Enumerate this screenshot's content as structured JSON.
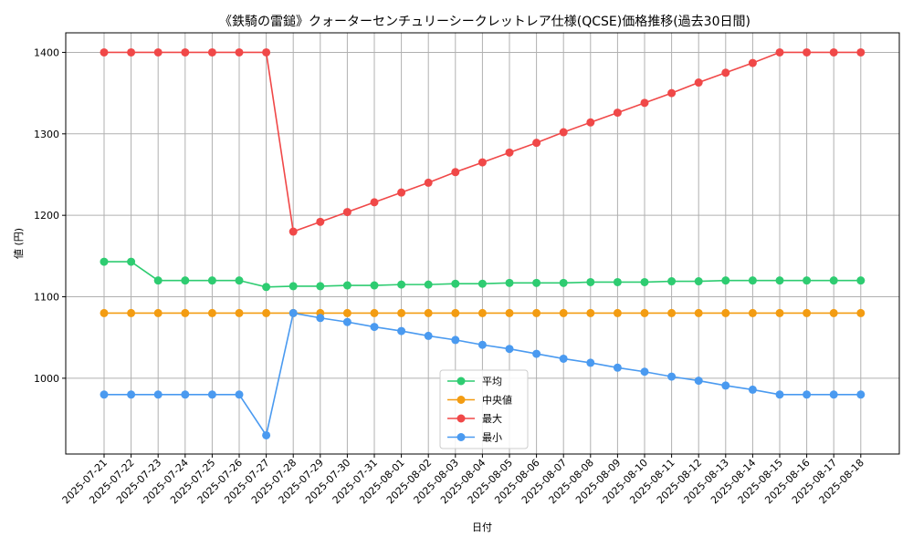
{
  "chart_data": {
    "type": "line",
    "title": "《鉄騎の雷鎚》クォーターセンチュリーシークレットレア仕様(QCSE)価格推移(過去30日間)",
    "xlabel": "日付",
    "ylabel": "値 (円)",
    "ylim": [
      907,
      1424
    ],
    "yticks": [
      1000,
      1100,
      1200,
      1300,
      1400
    ],
    "grid": true,
    "legend_position": "lower-center",
    "categories": [
      "2025-07-21",
      "2025-07-22",
      "2025-07-23",
      "2025-07-24",
      "2025-07-25",
      "2025-07-26",
      "2025-07-27",
      "2025-07-28",
      "2025-07-29",
      "2025-07-30",
      "2025-07-31",
      "2025-08-01",
      "2025-08-02",
      "2025-08-03",
      "2025-08-04",
      "2025-08-05",
      "2025-08-06",
      "2025-08-07",
      "2025-08-08",
      "2025-08-09",
      "2025-08-10",
      "2025-08-11",
      "2025-08-12",
      "2025-08-13",
      "2025-08-14",
      "2025-08-15",
      "2025-08-16",
      "2025-08-17",
      "2025-08-18"
    ],
    "series": [
      {
        "name": "平均",
        "color": "#2ecc71",
        "values": [
          1143,
          1143,
          1120,
          1120,
          1120,
          1120,
          1112,
          1113,
          1113,
          1114,
          1114,
          1115,
          1115,
          1116,
          1116,
          1117,
          1117,
          1117,
          1118,
          1118,
          1118,
          1119,
          1119,
          1120,
          1120,
          1120,
          1120,
          1120,
          1120
        ]
      },
      {
        "name": "中央値",
        "color": "#f39c12",
        "values": [
          1080,
          1080,
          1080,
          1080,
          1080,
          1080,
          1080,
          1080,
          1080,
          1080,
          1080,
          1080,
          1080,
          1080,
          1080,
          1080,
          1080,
          1080,
          1080,
          1080,
          1080,
          1080,
          1080,
          1080,
          1080,
          1080,
          1080,
          1080,
          1080
        ]
      },
      {
        "name": "最大",
        "color": "#f04848",
        "values": [
          1400,
          1400,
          1400,
          1400,
          1400,
          1400,
          1400,
          1180,
          1192,
          1204,
          1216,
          1228,
          1240,
          1253,
          1265,
          1277,
          1289,
          1302,
          1314,
          1326,
          1338,
          1350,
          1363,
          1375,
          1387,
          1400,
          1400,
          1400,
          1400
        ]
      },
      {
        "name": "最小",
        "color": "#4a9af0",
        "values": [
          980,
          980,
          980,
          980,
          980,
          980,
          930,
          1080,
          1074,
          1069,
          1063,
          1058,
          1052,
          1047,
          1041,
          1036,
          1030,
          1024,
          1019,
          1013,
          1008,
          1002,
          997,
          991,
          986,
          980,
          980,
          980,
          980
        ]
      }
    ]
  }
}
